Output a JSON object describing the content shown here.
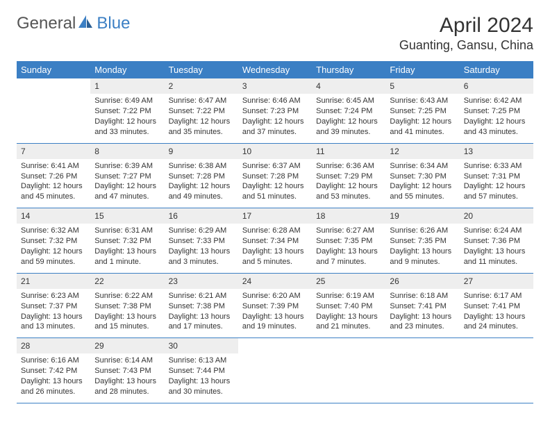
{
  "logo": {
    "general": "General",
    "blue": "Blue"
  },
  "title": "April 2024",
  "location": "Guanting, Gansu, China",
  "colors": {
    "header_bg": "#3b7fc4",
    "header_text": "#ffffff",
    "daynum_bg": "#eeeeee",
    "border": "#3b7fc4",
    "text": "#333333",
    "logo_gray": "#555555",
    "logo_blue": "#3b7fc4",
    "page_bg": "#ffffff"
  },
  "typography": {
    "title_fontsize": 30,
    "location_fontsize": 18,
    "header_fontsize": 13,
    "daynum_fontsize": 12,
    "body_fontsize": 11
  },
  "day_headers": [
    "Sunday",
    "Monday",
    "Tuesday",
    "Wednesday",
    "Thursday",
    "Friday",
    "Saturday"
  ],
  "weeks": [
    [
      {
        "n": "",
        "sr": "",
        "ss": "",
        "d1": "",
        "d2": ""
      },
      {
        "n": "1",
        "sr": "Sunrise: 6:49 AM",
        "ss": "Sunset: 7:22 PM",
        "d1": "Daylight: 12 hours",
        "d2": "and 33 minutes."
      },
      {
        "n": "2",
        "sr": "Sunrise: 6:47 AM",
        "ss": "Sunset: 7:22 PM",
        "d1": "Daylight: 12 hours",
        "d2": "and 35 minutes."
      },
      {
        "n": "3",
        "sr": "Sunrise: 6:46 AM",
        "ss": "Sunset: 7:23 PM",
        "d1": "Daylight: 12 hours",
        "d2": "and 37 minutes."
      },
      {
        "n": "4",
        "sr": "Sunrise: 6:45 AM",
        "ss": "Sunset: 7:24 PM",
        "d1": "Daylight: 12 hours",
        "d2": "and 39 minutes."
      },
      {
        "n": "5",
        "sr": "Sunrise: 6:43 AM",
        "ss": "Sunset: 7:25 PM",
        "d1": "Daylight: 12 hours",
        "d2": "and 41 minutes."
      },
      {
        "n": "6",
        "sr": "Sunrise: 6:42 AM",
        "ss": "Sunset: 7:25 PM",
        "d1": "Daylight: 12 hours",
        "d2": "and 43 minutes."
      }
    ],
    [
      {
        "n": "7",
        "sr": "Sunrise: 6:41 AM",
        "ss": "Sunset: 7:26 PM",
        "d1": "Daylight: 12 hours",
        "d2": "and 45 minutes."
      },
      {
        "n": "8",
        "sr": "Sunrise: 6:39 AM",
        "ss": "Sunset: 7:27 PM",
        "d1": "Daylight: 12 hours",
        "d2": "and 47 minutes."
      },
      {
        "n": "9",
        "sr": "Sunrise: 6:38 AM",
        "ss": "Sunset: 7:28 PM",
        "d1": "Daylight: 12 hours",
        "d2": "and 49 minutes."
      },
      {
        "n": "10",
        "sr": "Sunrise: 6:37 AM",
        "ss": "Sunset: 7:28 PM",
        "d1": "Daylight: 12 hours",
        "d2": "and 51 minutes."
      },
      {
        "n": "11",
        "sr": "Sunrise: 6:36 AM",
        "ss": "Sunset: 7:29 PM",
        "d1": "Daylight: 12 hours",
        "d2": "and 53 minutes."
      },
      {
        "n": "12",
        "sr": "Sunrise: 6:34 AM",
        "ss": "Sunset: 7:30 PM",
        "d1": "Daylight: 12 hours",
        "d2": "and 55 minutes."
      },
      {
        "n": "13",
        "sr": "Sunrise: 6:33 AM",
        "ss": "Sunset: 7:31 PM",
        "d1": "Daylight: 12 hours",
        "d2": "and 57 minutes."
      }
    ],
    [
      {
        "n": "14",
        "sr": "Sunrise: 6:32 AM",
        "ss": "Sunset: 7:32 PM",
        "d1": "Daylight: 12 hours",
        "d2": "and 59 minutes."
      },
      {
        "n": "15",
        "sr": "Sunrise: 6:31 AM",
        "ss": "Sunset: 7:32 PM",
        "d1": "Daylight: 13 hours",
        "d2": "and 1 minute."
      },
      {
        "n": "16",
        "sr": "Sunrise: 6:29 AM",
        "ss": "Sunset: 7:33 PM",
        "d1": "Daylight: 13 hours",
        "d2": "and 3 minutes."
      },
      {
        "n": "17",
        "sr": "Sunrise: 6:28 AM",
        "ss": "Sunset: 7:34 PM",
        "d1": "Daylight: 13 hours",
        "d2": "and 5 minutes."
      },
      {
        "n": "18",
        "sr": "Sunrise: 6:27 AM",
        "ss": "Sunset: 7:35 PM",
        "d1": "Daylight: 13 hours",
        "d2": "and 7 minutes."
      },
      {
        "n": "19",
        "sr": "Sunrise: 6:26 AM",
        "ss": "Sunset: 7:35 PM",
        "d1": "Daylight: 13 hours",
        "d2": "and 9 minutes."
      },
      {
        "n": "20",
        "sr": "Sunrise: 6:24 AM",
        "ss": "Sunset: 7:36 PM",
        "d1": "Daylight: 13 hours",
        "d2": "and 11 minutes."
      }
    ],
    [
      {
        "n": "21",
        "sr": "Sunrise: 6:23 AM",
        "ss": "Sunset: 7:37 PM",
        "d1": "Daylight: 13 hours",
        "d2": "and 13 minutes."
      },
      {
        "n": "22",
        "sr": "Sunrise: 6:22 AM",
        "ss": "Sunset: 7:38 PM",
        "d1": "Daylight: 13 hours",
        "d2": "and 15 minutes."
      },
      {
        "n": "23",
        "sr": "Sunrise: 6:21 AM",
        "ss": "Sunset: 7:38 PM",
        "d1": "Daylight: 13 hours",
        "d2": "and 17 minutes."
      },
      {
        "n": "24",
        "sr": "Sunrise: 6:20 AM",
        "ss": "Sunset: 7:39 PM",
        "d1": "Daylight: 13 hours",
        "d2": "and 19 minutes."
      },
      {
        "n": "25",
        "sr": "Sunrise: 6:19 AM",
        "ss": "Sunset: 7:40 PM",
        "d1": "Daylight: 13 hours",
        "d2": "and 21 minutes."
      },
      {
        "n": "26",
        "sr": "Sunrise: 6:18 AM",
        "ss": "Sunset: 7:41 PM",
        "d1": "Daylight: 13 hours",
        "d2": "and 23 minutes."
      },
      {
        "n": "27",
        "sr": "Sunrise: 6:17 AM",
        "ss": "Sunset: 7:41 PM",
        "d1": "Daylight: 13 hours",
        "d2": "and 24 minutes."
      }
    ],
    [
      {
        "n": "28",
        "sr": "Sunrise: 6:16 AM",
        "ss": "Sunset: 7:42 PM",
        "d1": "Daylight: 13 hours",
        "d2": "and 26 minutes."
      },
      {
        "n": "29",
        "sr": "Sunrise: 6:14 AM",
        "ss": "Sunset: 7:43 PM",
        "d1": "Daylight: 13 hours",
        "d2": "and 28 minutes."
      },
      {
        "n": "30",
        "sr": "Sunrise: 6:13 AM",
        "ss": "Sunset: 7:44 PM",
        "d1": "Daylight: 13 hours",
        "d2": "and 30 minutes."
      },
      {
        "n": "",
        "sr": "",
        "ss": "",
        "d1": "",
        "d2": ""
      },
      {
        "n": "",
        "sr": "",
        "ss": "",
        "d1": "",
        "d2": ""
      },
      {
        "n": "",
        "sr": "",
        "ss": "",
        "d1": "",
        "d2": ""
      },
      {
        "n": "",
        "sr": "",
        "ss": "",
        "d1": "",
        "d2": ""
      }
    ]
  ]
}
